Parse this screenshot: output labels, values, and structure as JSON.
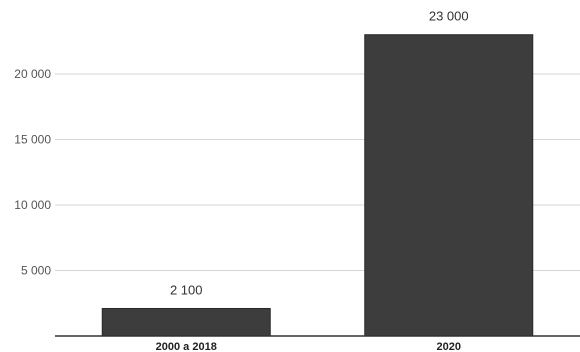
{
  "chart_data": {
    "type": "bar",
    "categories": [
      "2000 a 2018",
      "2020"
    ],
    "values": [
      2100,
      23000
    ],
    "value_labels": [
      "2 100",
      "23 000"
    ],
    "yticks": [
      5000,
      10000,
      15000,
      20000
    ],
    "ytick_labels": [
      "5 000",
      "10 000",
      "15 000",
      "20 000"
    ],
    "ylim": [
      0,
      25000
    ],
    "grid": true,
    "bar_color": "#3d3d3d",
    "title": "",
    "xlabel": "",
    "ylabel": ""
  }
}
